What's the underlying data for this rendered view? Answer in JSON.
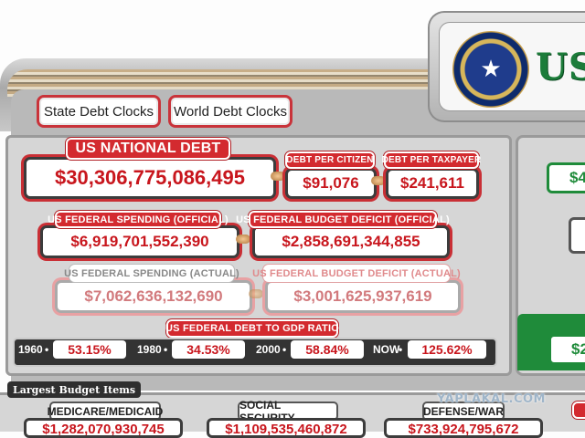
{
  "brand": {
    "text": "US"
  },
  "tabs": [
    {
      "label": "State Debt Clocks"
    },
    {
      "label": "World Debt Clocks"
    }
  ],
  "national_debt": {
    "label": "US NATIONAL DEBT",
    "value": "$30,306,775,086,495"
  },
  "debt_per_citizen": {
    "label": "DEBT PER CITIZEN",
    "value": "$91,076"
  },
  "debt_per_taxpayer": {
    "label": "DEBT PER TAXPAYER",
    "value": "$241,611"
  },
  "spending_official": {
    "label": "US FEDERAL SPENDING (OFFICIAL)",
    "value": "$6,919,701,552,390"
  },
  "deficit_official": {
    "label": "US FEDERAL BUDGET DEFICIT (OFFICIAL)",
    "value": "$2,858,691,344,855"
  },
  "spending_actual": {
    "label": "US FEDERAL SPENDING (ACTUAL)",
    "value": "$7,062,636,132,690"
  },
  "deficit_actual": {
    "label": "US FEDERAL BUDGET DEFICIT (ACTUAL)",
    "value": "$3,001,625,937,619"
  },
  "gdp_ratio": {
    "label": "US FEDERAL DEBT TO GDP RATIO",
    "items": [
      {
        "key": "1960",
        "value": "53.15%"
      },
      {
        "key": "1980",
        "value": "34.53%"
      },
      {
        "key": "2000",
        "value": "58.84%"
      },
      {
        "key": "NOW",
        "value": "125.62%"
      }
    ]
  },
  "side": {
    "value_top": "$4",
    "value_bottom": "$2"
  },
  "budget_items": {
    "title": "Largest Budget Items",
    "items": [
      {
        "label": "MEDICARE/MEDICAID",
        "value": "$1,282,070,930,745"
      },
      {
        "label": "SOCIAL SECURITY",
        "value": "$1,109,535,460,872"
      },
      {
        "label": "DEFENSE/WAR",
        "value": "$733,924,795,672"
      }
    ]
  },
  "watermark": "YAPLAKAL.COM",
  "colors": {
    "accent_red": "#d32a2f",
    "value_red": "#c8161d",
    "brand_green": "#1c7c3a"
  }
}
